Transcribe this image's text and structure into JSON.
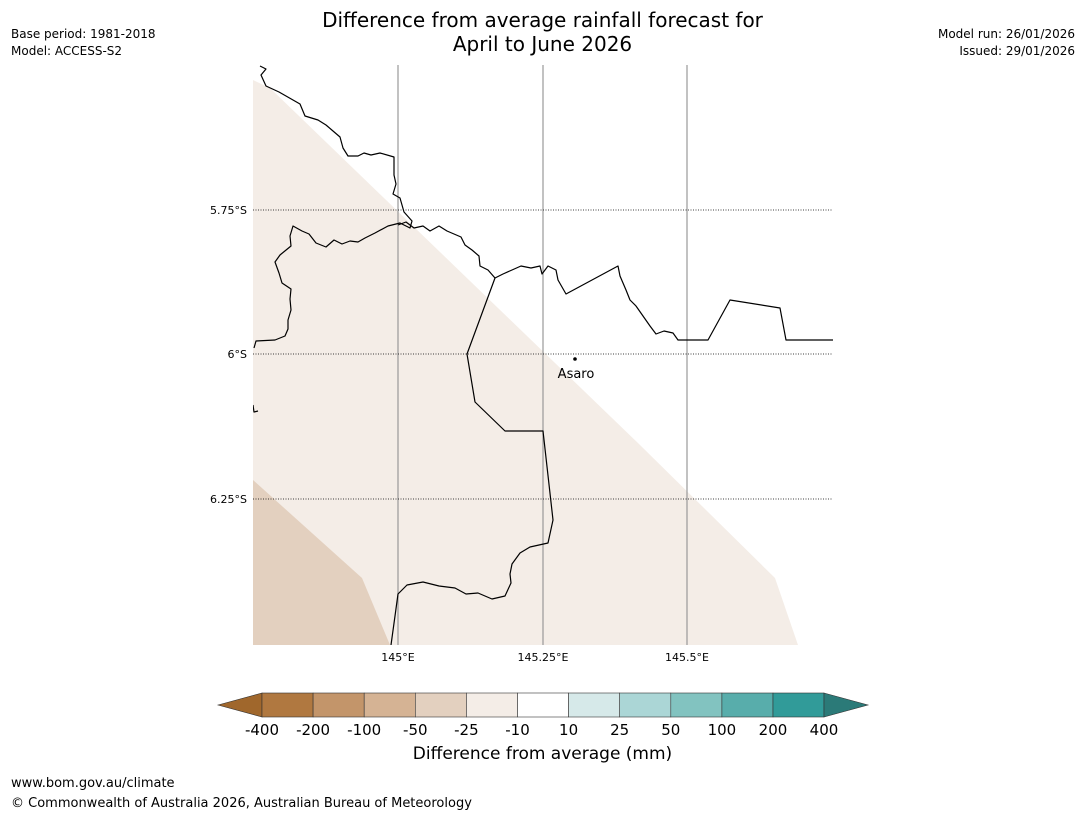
{
  "title": {
    "line1": "Difference from average rainfall forecast for",
    "line2": "April to June 2026"
  },
  "meta": {
    "base_period": "Base period: 1981-2018",
    "model": "Model: ACCESS-S2",
    "model_run": "Model run: 26/01/2026",
    "issued": "Issued: 29/01/2026"
  },
  "map": {
    "lat_labels": [
      "5.75°S",
      "6°S",
      "6.25°S"
    ],
    "lon_labels": [
      "145°E",
      "145.25°E",
      "145.5°E"
    ],
    "place_name": "Asaro",
    "colors": {
      "light_fill": "#f4ede7",
      "darker_fill": "#e3d0bf",
      "border": "#000000",
      "grid": "#999999"
    }
  },
  "colorbar": {
    "title": "Difference from average (mm)",
    "ticks": [
      "-400",
      "-200",
      "-100",
      "-50",
      "-25",
      "-10",
      "10",
      "25",
      "50",
      "100",
      "200",
      "400"
    ],
    "colors": [
      "#a0672c",
      "#b07840",
      "#c3956a",
      "#d5b394",
      "#e3d0bf",
      "#f4ede7",
      "#ffffff",
      "#d6e9e9",
      "#abd6d6",
      "#82c3c0",
      "#58adab",
      "#319b99",
      "#2b7a78"
    ]
  },
  "footer": {
    "url": "www.bom.gov.au/climate",
    "copyright": "© Commonwealth of Australia 2026, Australian Bureau of Meteorology"
  }
}
